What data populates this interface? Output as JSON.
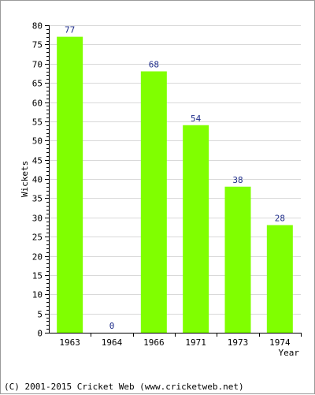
{
  "chart_data": {
    "type": "bar",
    "title": "",
    "xlabel": "Year",
    "ylabel": "Wickets",
    "categories": [
      "1963",
      "1964",
      "1966",
      "1971",
      "1973",
      "1974"
    ],
    "values": [
      77,
      0,
      68,
      54,
      38,
      28
    ],
    "ylim": [
      0,
      80
    ],
    "y_tick_step": 5,
    "grid": true,
    "legend": "none",
    "bar_color": "#80ff00",
    "label_color": "#1f2d8a"
  },
  "footer": {
    "copyright": "(C) 2001-2015 Cricket Web (www.cricketweb.net)"
  }
}
